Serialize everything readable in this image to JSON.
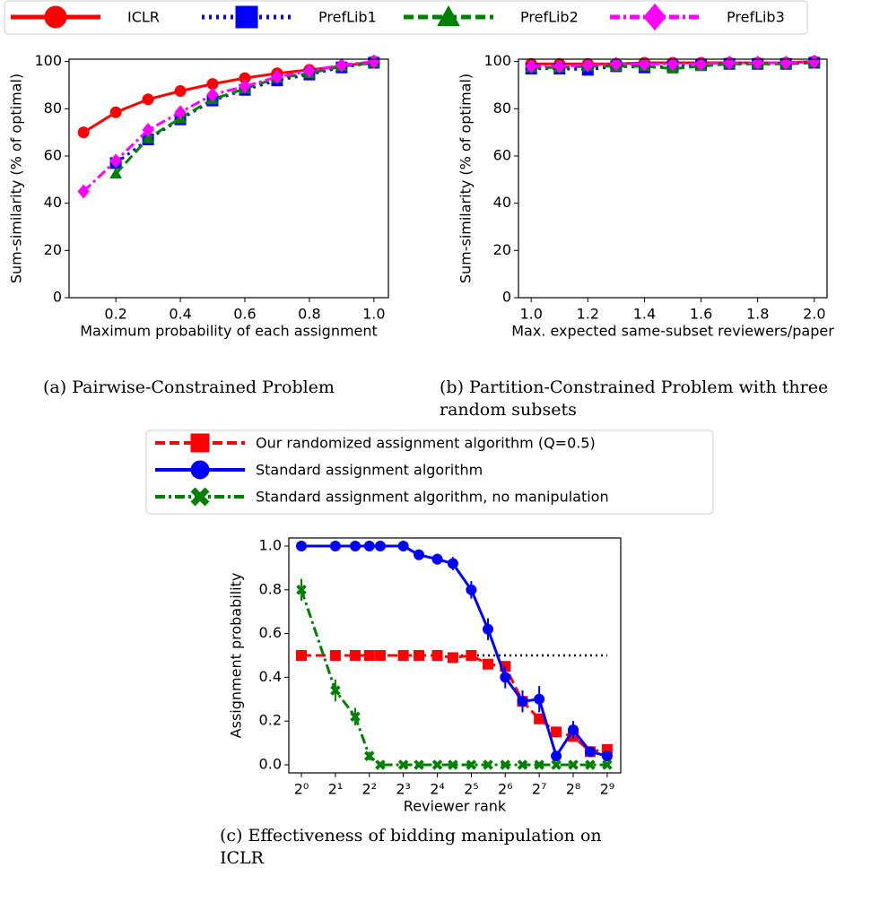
{
  "chart_data": [
    {
      "type": "line",
      "caption": "(a) Pairwise-Constrained Problem",
      "x_label": "Maximum probability of each assignment",
      "y_label": "Sum-similarity (% of optimal)",
      "xlim": [
        0.055,
        1.045
      ],
      "ylim": [
        0,
        101
      ],
      "xticks": [
        0.2,
        0.4,
        0.6,
        0.8,
        {
          "value": 1.0,
          "label": "1.0"
        }
      ],
      "yticks": [
        0,
        20,
        40,
        60,
        80,
        100
      ],
      "series": [
        {
          "name": "ICLR",
          "color": "#ff0000",
          "marker": "circle",
          "linestyle": "solid",
          "x": [
            0.1,
            0.2,
            0.3,
            0.4,
            0.5,
            0.6,
            0.7,
            0.8,
            0.9,
            1.0
          ],
          "values": [
            70,
            78.5,
            84,
            87.5,
            90.5,
            93,
            95,
            96.5,
            98,
            100
          ]
        },
        {
          "name": "PrefLib1",
          "color": "#0000ff",
          "marker": "square",
          "linestyle": "dotted",
          "x": [
            0.2,
            0.3,
            0.4,
            0.5,
            0.6,
            0.7,
            0.8,
            0.9,
            1.0
          ],
          "values": [
            57,
            67,
            75.5,
            83.5,
            88,
            92,
            94.5,
            97.5,
            99.5
          ]
        },
        {
          "name": "PrefLib2",
          "color": "#008000",
          "marker": "triangle",
          "linestyle": "dashed",
          "x": [
            0.2,
            0.3,
            0.4,
            0.5,
            0.6,
            0.7,
            0.8,
            0.9,
            1.0
          ],
          "values": [
            52.5,
            67.5,
            76,
            84,
            88.5,
            93,
            95,
            98,
            99.5
          ]
        },
        {
          "name": "PrefLib3",
          "color": "#ff00ff",
          "marker": "diamond",
          "linestyle": "dashdot",
          "x": [
            0.1,
            0.2,
            0.3,
            0.4,
            0.5,
            0.6,
            0.7,
            0.8,
            0.9,
            1.0
          ],
          "values": [
            45,
            58,
            71,
            78.5,
            86,
            89.5,
            93.5,
            96,
            98.5,
            100
          ]
        }
      ]
    },
    {
      "type": "line",
      "caption": "(b) Partition-Constrained Problem with three random subsets",
      "x_label": "Max. expected same-subset reviewers/paper",
      "y_label": "Sum-similarity (% of optimal)",
      "xlim": [
        0.955,
        2.045
      ],
      "ylim": [
        0,
        101
      ],
      "xticks": [
        {
          "value": 1.0,
          "label": "1.0"
        },
        1.2,
        1.4,
        1.6,
        1.8,
        {
          "value": 2.0,
          "label": "2.0"
        }
      ],
      "yticks": [
        0,
        20,
        40,
        60,
        80,
        100
      ],
      "series": [
        {
          "name": "ICLR",
          "color": "#ff0000",
          "marker": "circle",
          "linestyle": "solid",
          "x": [
            1.0,
            1.1,
            1.2,
            1.3,
            1.4,
            1.5,
            1.6,
            1.7,
            1.8,
            1.9,
            2.0
          ],
          "values": [
            99,
            99,
            99,
            99,
            99.5,
            99.5,
            99.5,
            99.5,
            99.5,
            99.5,
            100
          ]
        },
        {
          "name": "PrefLib1",
          "color": "#0000ff",
          "marker": "square",
          "linestyle": "dotted",
          "x": [
            1.0,
            1.1,
            1.2,
            1.3,
            1.4,
            1.5,
            1.6,
            1.7,
            1.8,
            1.9,
            2.0
          ],
          "values": [
            97,
            97,
            96.5,
            98,
            97.5,
            98,
            98.5,
            99,
            99,
            99,
            99.5
          ]
        },
        {
          "name": "PrefLib2",
          "color": "#008000",
          "marker": "triangle",
          "linestyle": "dashed",
          "x": [
            1.0,
            1.1,
            1.2,
            1.3,
            1.4,
            1.5,
            1.6,
            1.7,
            1.8,
            1.9,
            2.0
          ],
          "values": [
            97.5,
            97.5,
            98,
            98,
            98,
            97,
            98,
            99,
            99,
            99,
            99.5
          ]
        },
        {
          "name": "PrefLib3",
          "color": "#ff00ff",
          "marker": "diamond",
          "linestyle": "dashdot",
          "x": [
            1.0,
            1.1,
            1.2,
            1.3,
            1.4,
            1.5,
            1.6,
            1.7,
            1.8,
            1.9,
            2.0
          ],
          "values": [
            98,
            98,
            98.5,
            99,
            99,
            99,
            99,
            99.5,
            99.5,
            99.5,
            100
          ]
        }
      ]
    },
    {
      "type": "line",
      "caption": "(c) Effectiveness of bidding manipulation on ICLR",
      "x_label": "Reviewer rank",
      "y_label": "Assignment probability",
      "xscale": "log",
      "log_base": 2,
      "xlim": [
        0.774,
        675
      ],
      "ylim": [
        -0.037,
        1.037
      ],
      "xticks": [
        {
          "value": 1,
          "label": "2⁰"
        },
        {
          "value": 2,
          "label": "2¹"
        },
        {
          "value": 4,
          "label": "2²"
        },
        {
          "value": 8,
          "label": "2³"
        },
        {
          "value": 16,
          "label": "2⁴"
        },
        {
          "value": 32,
          "label": "2⁵"
        },
        {
          "value": 64,
          "label": "2⁶"
        },
        {
          "value": 128,
          "label": "2⁷"
        },
        {
          "value": 256,
          "label": "2⁸"
        },
        {
          "value": 512,
          "label": "2⁹"
        }
      ],
      "yticks": [
        {
          "value": 0,
          "label": "0.0"
        },
        0.2,
        0.4,
        0.6,
        0.8,
        {
          "value": 1,
          "label": "1.0"
        }
      ],
      "x": [
        1,
        2,
        3,
        4,
        5,
        8,
        11,
        16,
        22,
        32,
        45,
        64,
        91,
        128,
        181,
        256,
        362,
        512
      ],
      "reference_line": {
        "y": 0.5,
        "x": [
          26,
          512
        ],
        "color": "#000000"
      },
      "series": [
        {
          "name": "Our randomized assignment algorithm (Q=0.5)",
          "color": "#ff0000",
          "marker": "square",
          "linestyle": "dashed",
          "values": [
            0.5,
            0.5,
            0.5,
            0.5,
            0.5,
            0.5,
            0.5,
            0.5,
            0.49,
            0.5,
            0.46,
            0.45,
            0.29,
            0.21,
            0.15,
            0.13,
            0.06,
            0.07
          ],
          "errors": [
            0.01,
            0.01,
            0.01,
            0.01,
            0.01,
            0.01,
            0.01,
            0.01,
            0.01,
            0.01,
            0.01,
            0.01,
            0.03,
            0.02,
            0.02,
            0.02,
            0.01,
            0.01
          ]
        },
        {
          "name": "Standard assignment algorithm",
          "color": "#0000ff",
          "marker": "circle",
          "linestyle": "solid",
          "values": [
            1,
            1,
            1,
            1,
            1,
            1,
            0.96,
            0.94,
            0.92,
            0.8,
            0.62,
            0.4,
            0.29,
            0.3,
            0.04,
            0.16,
            0.06,
            0.04
          ],
          "errors": [
            0,
            0,
            0,
            0,
            0,
            0,
            0.015,
            0.025,
            0.03,
            0.04,
            0.05,
            0.05,
            0.05,
            0.06,
            0.02,
            0.04,
            0.02,
            0.02
          ]
        },
        {
          "name": "Standard assignment algorithm, no manipulation",
          "color": "#008000",
          "marker": "x",
          "linestyle": "dashdot",
          "values": [
            0.8,
            0.34,
            0.22,
            0.04,
            0,
            0,
            0,
            0,
            0,
            0,
            0,
            0,
            0,
            0,
            0,
            0,
            0,
            0
          ],
          "errors": [
            0.05,
            0.05,
            0.04,
            0.02,
            0,
            0,
            0,
            0,
            0,
            0,
            0,
            0,
            0,
            0,
            0,
            0,
            0,
            0
          ]
        }
      ]
    }
  ]
}
